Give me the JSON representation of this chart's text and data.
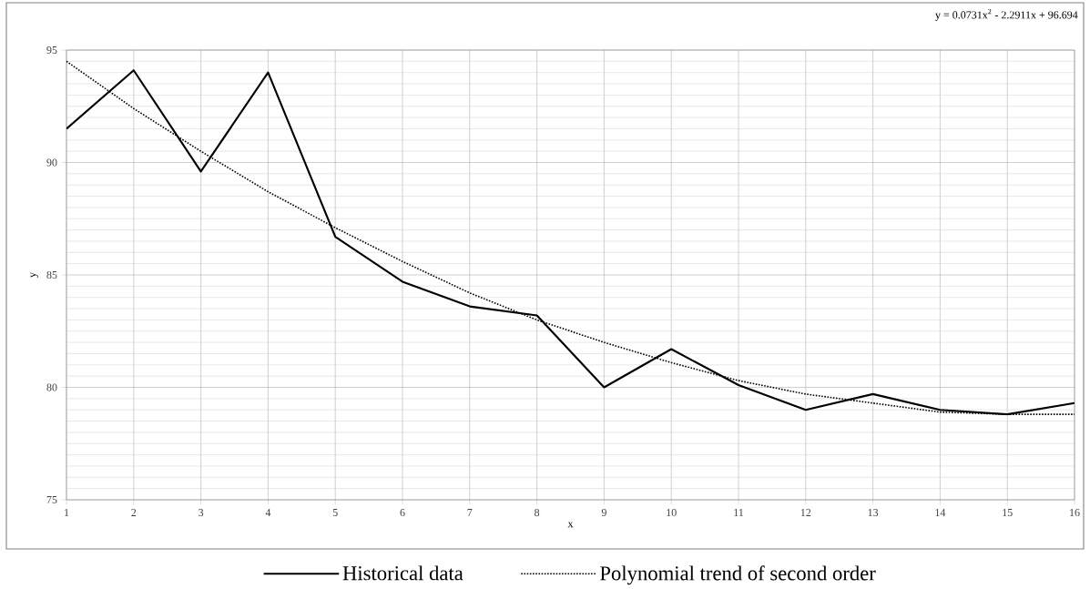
{
  "chart_data": {
    "type": "line",
    "xlabel": "x",
    "ylabel": "y",
    "annotations": [
      "y = 0.0731x$^{2}$ - 2.2911x + 96.694"
    ],
    "x": [
      1,
      2,
      3,
      4,
      5,
      6,
      7,
      8,
      9,
      10,
      11,
      12,
      13,
      14,
      15,
      16
    ],
    "xlim": [
      1,
      16
    ],
    "xticks": [
      1,
      2,
      3,
      4,
      5,
      6,
      7,
      8,
      9,
      10,
      11,
      12,
      13,
      14,
      15,
      16
    ],
    "ylim": [
      75,
      95
    ],
    "yticks": [
      75,
      80,
      85,
      90,
      95
    ],
    "grid": true,
    "legend": "bottom",
    "series": [
      {
        "name": "Historical data",
        "color": "#000000",
        "line_style": "solid",
        "values": [
          91.5,
          94.1,
          89.6,
          94.0,
          86.7,
          84.7,
          83.6,
          83.2,
          80.0,
          81.7,
          80.1,
          79.0,
          79.7,
          79.0,
          78.8,
          79.3
        ]
      },
      {
        "name": "Polynomial trend of second order",
        "type": "line",
        "color": "#000000",
        "line_style": "dotted",
        "x": [
          1,
          2,
          3,
          4,
          5,
          6,
          7,
          8,
          9,
          10,
          11,
          12,
          13,
          14,
          15,
          16
        ],
        "values": [
          94.5,
          92.4,
          90.5,
          88.7,
          87.1,
          85.6,
          84.2,
          83.0,
          82.0,
          81.1,
          80.3,
          79.7,
          79.3,
          78.9,
          78.8,
          78.8
        ]
      }
    ]
  }
}
